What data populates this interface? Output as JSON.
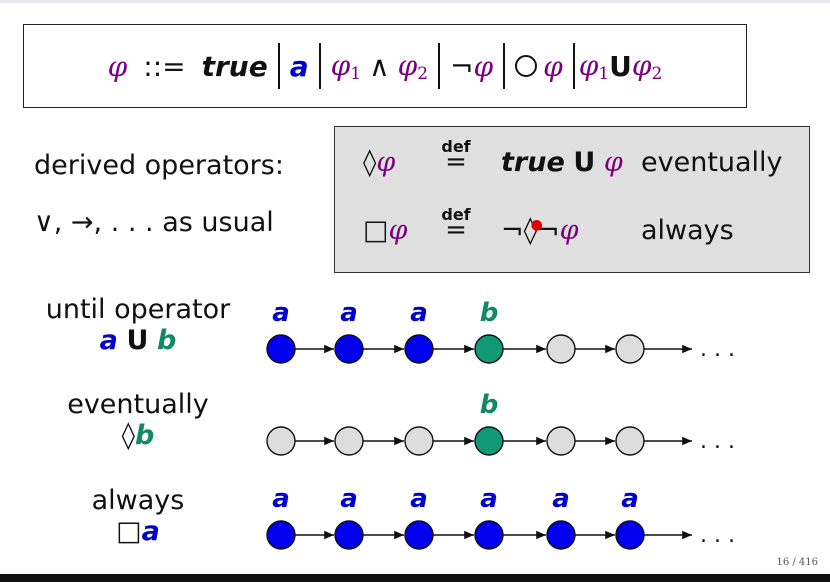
{
  "syntax": {
    "phi": "φ",
    "defsym": "::=",
    "true_kw": "true",
    "atom": "a",
    "and": "∧",
    "neg": "¬",
    "until": "U",
    "sub1": "1",
    "sub2": "2"
  },
  "derived": {
    "label": "derived operators:",
    "usual": "∨, →, . . . as usual",
    "def_word": "def",
    "def_eq": "=",
    "rows": [
      {
        "lhs_op": "◊",
        "lhs_phi": "φ",
        "rhs_true": "true",
        "rhs_u": "U",
        "rhs_phi": "φ",
        "name": "eventually"
      },
      {
        "lhs_op": "□",
        "lhs_phi": "φ",
        "rhs_pre": "¬",
        "rhs_op": "◊",
        "rhs_neg": "¬",
        "rhs_phi": "φ",
        "name": "always"
      }
    ]
  },
  "examples": [
    {
      "title": "until operator",
      "formula_a": "a",
      "formula_op": "U",
      "formula_b": "b",
      "labels": [
        "a",
        "a",
        "a",
        "b",
        "",
        ""
      ],
      "states": [
        "blue",
        "blue",
        "blue",
        "green",
        "gray",
        "gray"
      ]
    },
    {
      "title": "eventually",
      "formula_op": "◊",
      "formula_b": "b",
      "labels": [
        "",
        "",
        "",
        "b",
        "",
        ""
      ],
      "states": [
        "gray",
        "gray",
        "gray",
        "green",
        "gray",
        "gray"
      ]
    },
    {
      "title": "always",
      "formula_op": "□",
      "formula_a": "a",
      "labels": [
        "a",
        "a",
        "a",
        "a",
        "a",
        "a"
      ],
      "states": [
        "blue",
        "blue",
        "blue",
        "blue",
        "blue",
        "blue"
      ]
    }
  ],
  "ellipsis": ". . .",
  "colors": {
    "blue": "#0000ee",
    "green": "#119977",
    "gray": "#dddddd",
    "label_blue": "#0000cc",
    "label_green": "#118866"
  },
  "page": "16 / 416"
}
